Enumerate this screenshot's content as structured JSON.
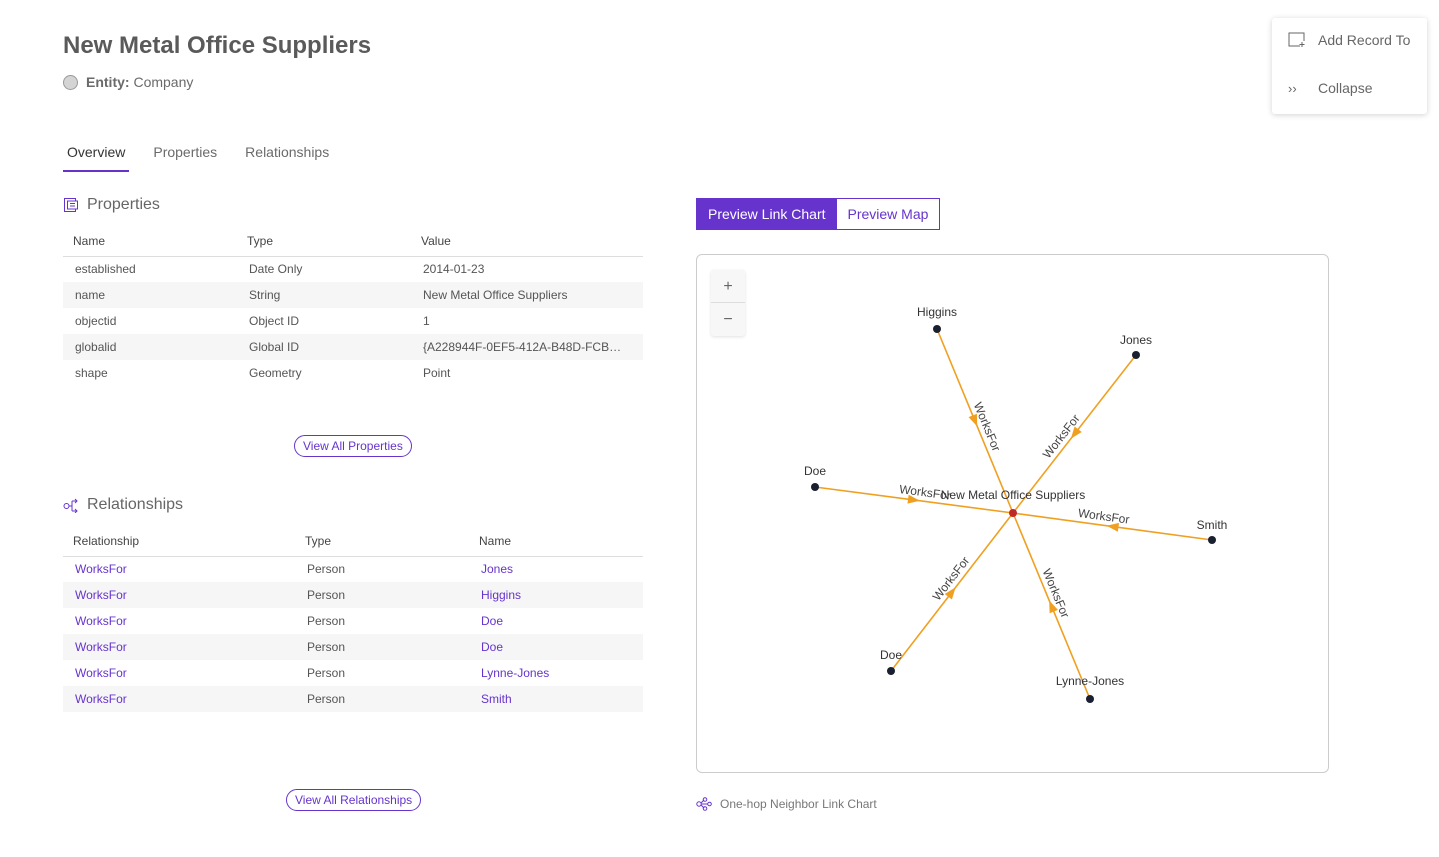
{
  "header": {
    "title": "New Metal Office Suppliers",
    "entity_label": "Entity:",
    "entity_value": "Company"
  },
  "tabs": [
    {
      "label": "Overview",
      "active": true
    },
    {
      "label": "Properties"
    },
    {
      "label": "Relationships"
    }
  ],
  "properties": {
    "title": "Properties",
    "columns": [
      "Name",
      "Type",
      "Value"
    ],
    "rows": [
      [
        "established",
        "Date Only",
        "2014-01-23"
      ],
      [
        "name",
        "String",
        "New Metal Office Suppliers"
      ],
      [
        "objectid",
        "Object ID",
        "1"
      ],
      [
        "globalid",
        "Global ID",
        "{A228944F-0EF5-412A-B48D-FCB…"
      ],
      [
        "shape",
        "Geometry",
        "Point"
      ]
    ],
    "view_all": "View All Properties"
  },
  "relationships": {
    "title": "Relationships",
    "columns": [
      "Relationship",
      "Type",
      "Name"
    ],
    "rows": [
      [
        "WorksFor",
        "Person",
        "Jones"
      ],
      [
        "WorksFor",
        "Person",
        "Higgins"
      ],
      [
        "WorksFor",
        "Person",
        "Doe"
      ],
      [
        "WorksFor",
        "Person",
        "Doe"
      ],
      [
        "WorksFor",
        "Person",
        "Lynne-Jones"
      ],
      [
        "WorksFor",
        "Person",
        "Smith"
      ]
    ],
    "view_all": "View All Relationships"
  },
  "menu": {
    "add_record": "Add Record To",
    "collapse": "Collapse"
  },
  "preview": {
    "link_chart": "Preview Link Chart",
    "map": "Preview Map",
    "active": "link_chart"
  },
  "link_chart": {
    "zoom_in": "+",
    "zoom_out": "−",
    "center": "New Metal Office Suppliers",
    "edge_label": "WorksFor",
    "nodes": [
      "Higgins",
      "Jones",
      "Doe",
      "Smith",
      "Doe",
      "Lynne-Jones"
    ],
    "colors": {
      "edge": "#f0a020",
      "center": "#c0282a",
      "node": "#1a2030"
    }
  },
  "footer": {
    "caption": "One-hop Neighbor Link Chart"
  },
  "colors": {
    "accent": "#6634cc"
  }
}
